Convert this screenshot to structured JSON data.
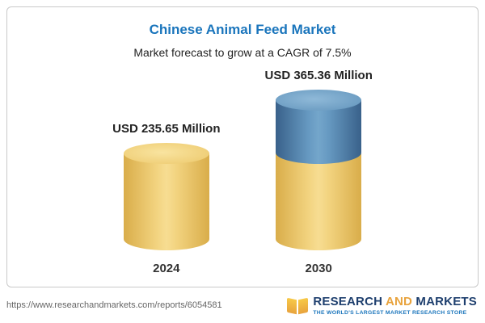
{
  "card": {
    "title": "Chinese Animal Feed Market",
    "subtitle": "Market forecast to grow at a CAGR of 7.5%"
  },
  "chart_data": {
    "type": "bar",
    "categories": [
      "2024",
      "2030"
    ],
    "values": [
      235.65,
      365.36
    ],
    "value_labels": [
      "USD 235.65 Million",
      "USD 365.36 Million"
    ],
    "title": "Chinese Animal Feed Market",
    "subtitle": "Market forecast to grow at a CAGR of 7.5%",
    "unit": "USD Million",
    "ylim": [
      0,
      400
    ],
    "grid": false,
    "legend": "none",
    "colors": {
      "bar_base": "#f2d37f",
      "bar_growth": "#6699c1",
      "title": "#1a75bc"
    },
    "notes": "2030 bar is a stacked cylinder: yellow base equals 2024 value, blue top equals growth over 2024"
  },
  "footer": {
    "url": "https://www.researchandmarkets.com/reports/6054581",
    "logo": {
      "research": "RESEARCH ",
      "and": "AND ",
      "markets": "MARKETS",
      "tagline": "THE WORLD'S LARGEST MARKET RESEARCH STORE"
    }
  }
}
